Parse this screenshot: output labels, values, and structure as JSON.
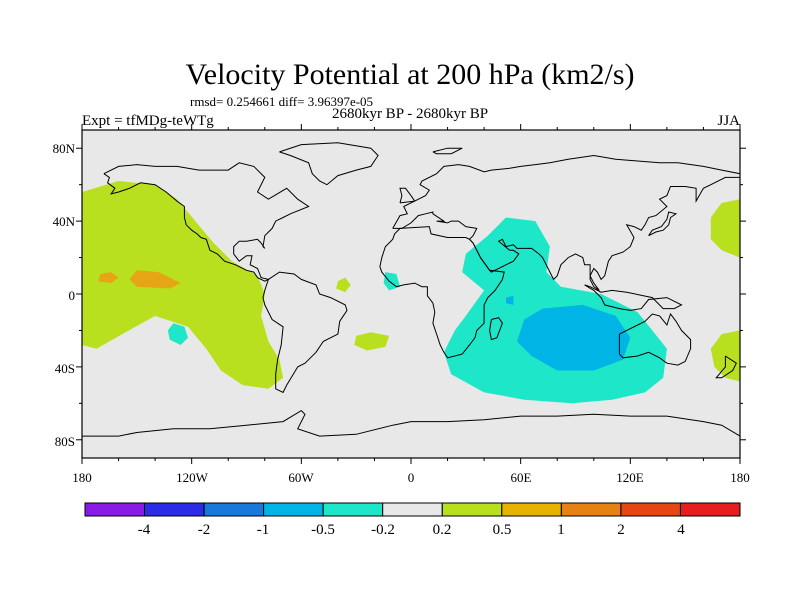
{
  "header": {
    "title": "Velocity Potential at 200 hPa (km2/s)",
    "stats": "rmsd= 0.254661 diff= 3.96397e-05",
    "experiment": "Expt = tfMDg-teWTg",
    "period": "2680kyr BP - 2680kyr BP",
    "season": "JJA"
  },
  "axes": {
    "lon_ticks": [
      "180",
      "120W",
      "60W",
      "0",
      "60E",
      "120E",
      "180"
    ],
    "lat_ticks": [
      "80N",
      "40N",
      "0",
      "40S",
      "80S"
    ]
  },
  "colorbar": {
    "labels": [
      "-4",
      "-2",
      "-1",
      "-0.5",
      "-0.2",
      "0.2",
      "0.5",
      "1",
      "2",
      "4"
    ],
    "colors": [
      "#8a1be6",
      "#2b2be8",
      "#1878dc",
      "#00b4e6",
      "#1ee6c8",
      "#e8e8e8",
      "#b8e01e",
      "#e6b400",
      "#e68214",
      "#e64614",
      "#e61e1e"
    ]
  },
  "colors": {
    "land_background": "#e8e8e8",
    "coast": "#000000",
    "positive_weak": "#b8e01e",
    "positive_mid": "#e6a514",
    "negative_weak": "#1ee6c8",
    "negative_mid": "#00b4e6"
  }
}
